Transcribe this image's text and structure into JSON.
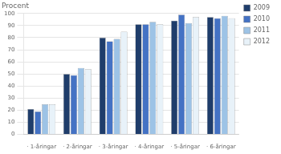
{
  "chart_data": {
    "type": "bar",
    "ylabel": "Procent",
    "categories": [
      "· 1-åringar",
      "· 2-åringar",
      "· 3-åringar",
      "· 4-åringar",
      "· 5-åringar",
      "· 6-åringar"
    ],
    "series": [
      {
        "name": "2009",
        "color": "#1F3D6B",
        "values": [
          21,
          50,
          80,
          91,
          94,
          97
        ]
      },
      {
        "name": "2010",
        "color": "#4472C4",
        "values": [
          19,
          49,
          77,
          91,
          99,
          96
        ]
      },
      {
        "name": "2011",
        "color": "#9DC3E6",
        "values": [
          25,
          55,
          79,
          93,
          92,
          98
        ]
      },
      {
        "name": "2012",
        "color": "#E8F2F9",
        "values": [
          25,
          54,
          85,
          91,
          97,
          96
        ]
      }
    ],
    "ylim": [
      0,
      100
    ],
    "yticks": [
      0,
      10,
      20,
      30,
      40,
      50,
      60,
      70,
      80,
      90,
      100
    ],
    "grid": true,
    "legend": "right"
  }
}
